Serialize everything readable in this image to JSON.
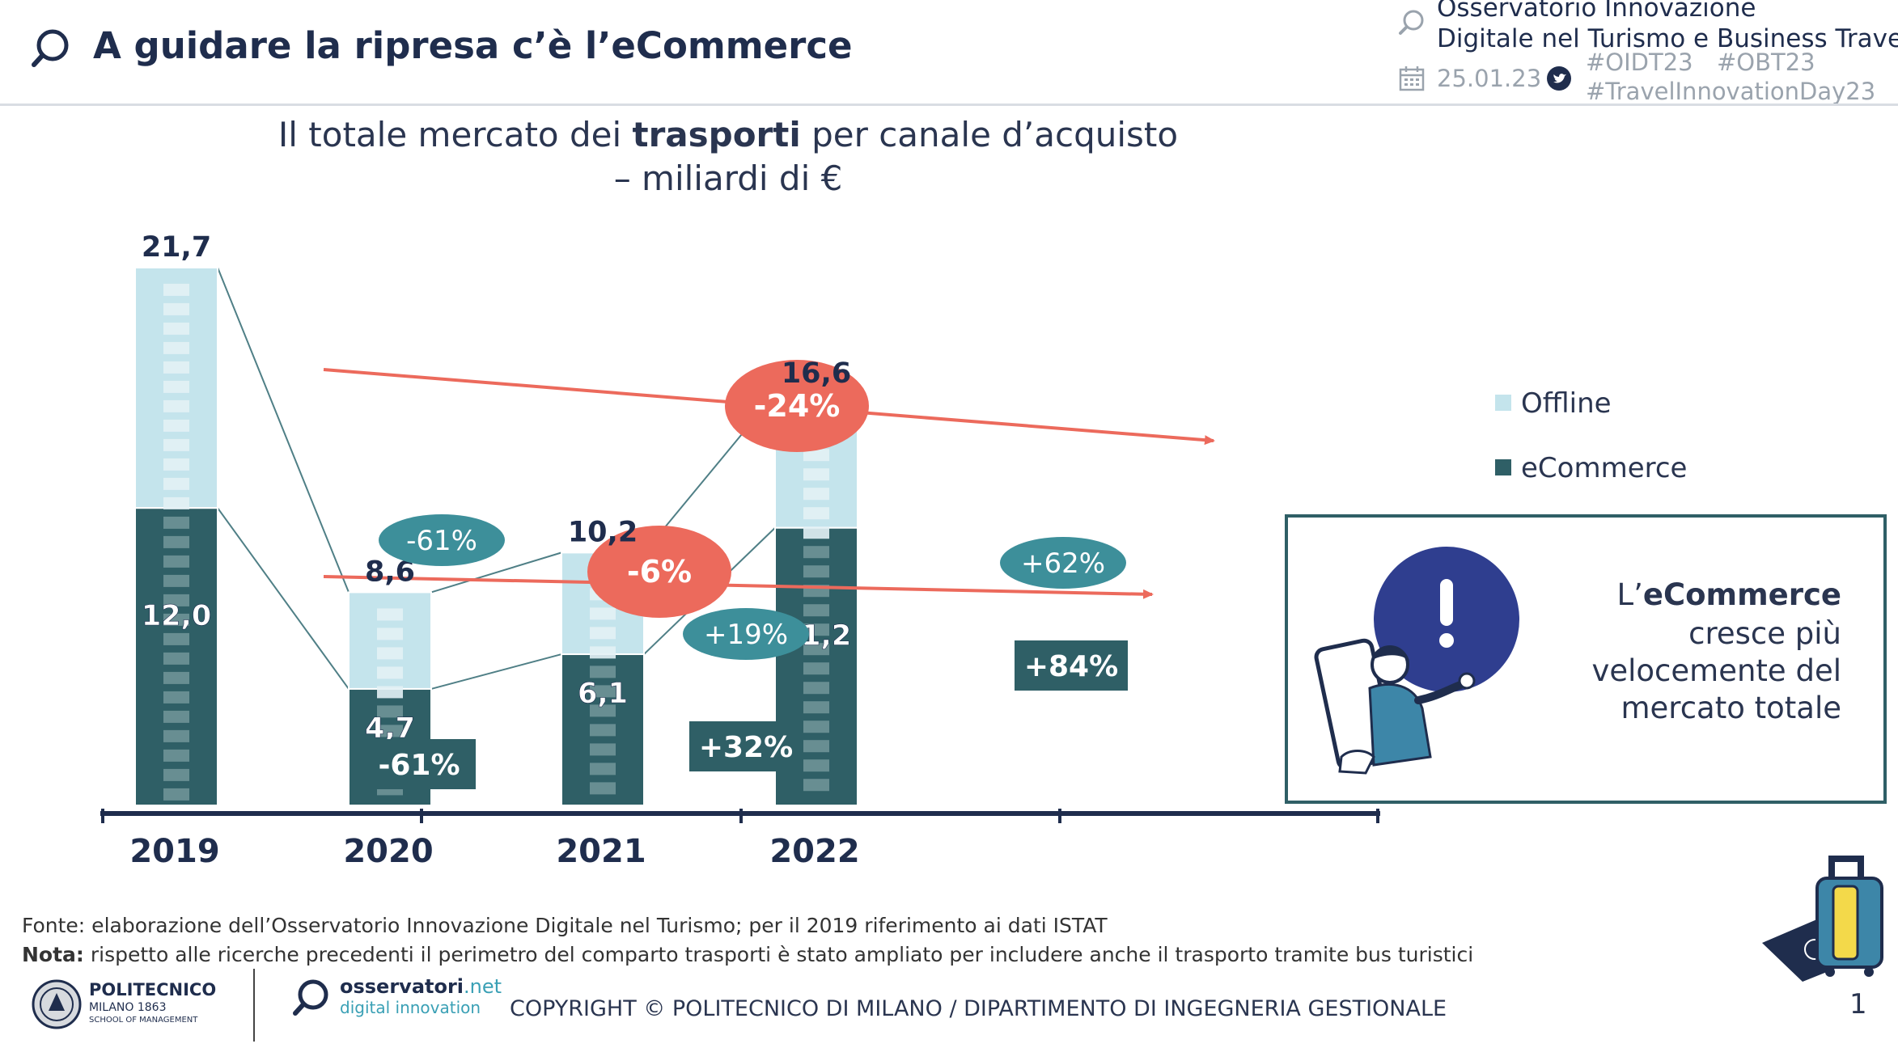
{
  "header": {
    "title": "A guidare la ripresa c’è l’eCommerce",
    "observatory_line1": "Osservatorio Innovazione",
    "observatory_line2": "Digitale nel Turismo e Business Travel",
    "date": "25.01.23",
    "hashtags": [
      "#OIDT23",
      "#OBT23",
      "#TravelInnovationDay23"
    ]
  },
  "chart_data": {
    "type": "bar",
    "title_prefix": "Il totale mercato dei ",
    "title_bold": "trasporti",
    "title_suffix": " per canale d’acquisto",
    "subtitle": "– miliardi di €",
    "categories": [
      "2019",
      "2020",
      "2021",
      "2022"
    ],
    "series": [
      {
        "name": "Offline",
        "values": [
          9.7,
          3.9,
          4.1,
          5.4
        ],
        "color": "#c4e4ec"
      },
      {
        "name": "eCommerce",
        "values": [
          12.0,
          4.7,
          6.1,
          11.2
        ],
        "color": "#2f5f66"
      }
    ],
    "total_labels": [
      "21,7",
      "8,6",
      "10,2",
      "16,6"
    ],
    "ecommerce_labels": [
      "12,0",
      "4,7",
      "6,1",
      "11,2"
    ],
    "yoy_total": [
      "-61%",
      "+19%",
      "+62%"
    ],
    "yoy_ecommerce": [
      "-61%",
      "+32%",
      "+84%"
    ],
    "overall_total": "-24%",
    "overall_ecommerce": "-6%",
    "legend": [
      "Offline",
      "eCommerce"
    ],
    "legend_position": "right",
    "ylim": [
      0,
      23
    ]
  },
  "callout": {
    "prefix": "L’",
    "bold": "eCommerce",
    "lines": [
      "cresce più",
      "velocemente del",
      "mercato totale"
    ]
  },
  "footer": {
    "fonte": "Fonte: elaborazione dell’Osservatorio Innovazione Digitale nel Turismo; per il 2019 riferimento ai dati ISTAT",
    "nota_label": "Nota:",
    "nota_text": " rispetto alle ricerche precedenti il perimetro del comparto trasporti è stato ampliato per includere anche il trasporto tramite bus turistici",
    "copyright": "COPYRIGHT © POLITECNICO DI MILANO / DIPARTIMENTO DI INGEGNERIA GESTIONALE",
    "page": "1",
    "poli_name": "POLITECNICO",
    "poli_sub": "MILANO 1863",
    "poli_school": "SCHOOL OF MANAGEMENT",
    "osserv_name": "osservatori",
    "osserv_tld": ".net",
    "osserv_sub": "digital innovation"
  },
  "colors": {
    "accent_red": "#ec6a5c",
    "accent_teal": "#3d8f9a",
    "dark_teal": "#2f5f66",
    "light_teal": "#c4e4ec",
    "navy": "#1f2d4d"
  }
}
